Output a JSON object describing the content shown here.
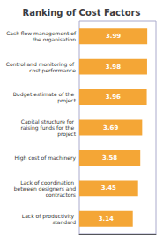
{
  "chart_data": {
    "type": "bar",
    "title": "Ranking of Cost Factors",
    "orientation": "horizontal",
    "categories": [
      "Lack of productivity standard",
      "Lack of coordination between designers and\ncontractors",
      "High cost of machinery",
      "Capital structure for raising funds for the project",
      "Budget estimate of the project",
      "Control and monitoring of cost performance",
      "Cash flow management of the organisation"
    ],
    "values": [
      3.14,
      3.45,
      3.58,
      3.69,
      3.96,
      3.98,
      3.99
    ],
    "color": "#F4A636",
    "xlim": [
      0,
      4.5
    ],
    "grid": false,
    "data_labels": true,
    "tick_labels": "y"
  }
}
